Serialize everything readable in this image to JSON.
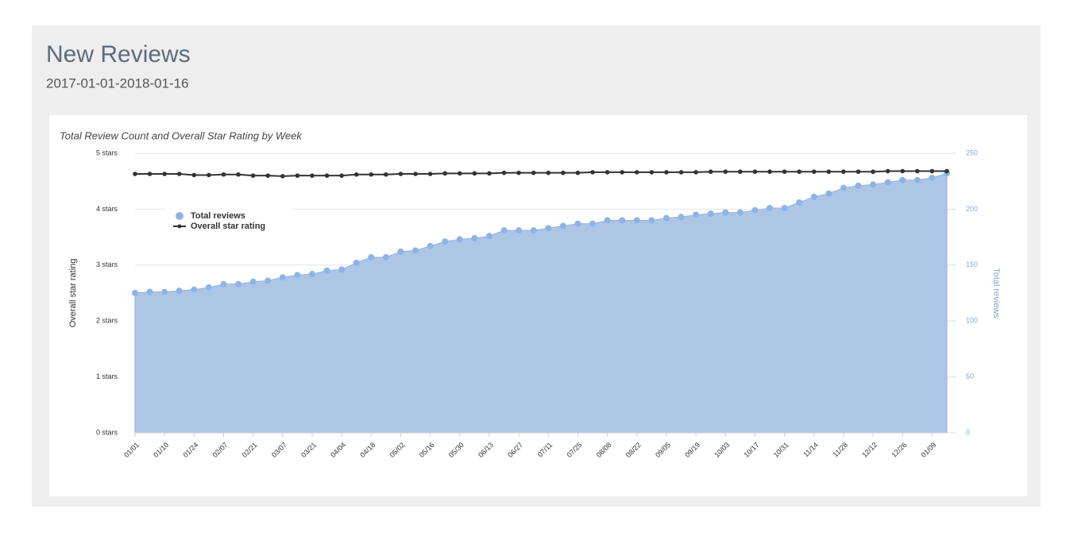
{
  "header": {
    "title": "New Reviews",
    "subtitle": "2017-01-01-2018-01-16"
  },
  "chart_data": {
    "type": "area",
    "title": "Total Review Count and Overall Star Rating by Week",
    "ylabel": "Overall star rating",
    "y2label": "Total reviews",
    "categories": [
      "01/01",
      null,
      "01/10",
      null,
      "01/24",
      null,
      "02/07",
      null,
      "02/21",
      null,
      "03/07",
      null,
      "03/21",
      null,
      "04/04",
      null,
      "04/18",
      null,
      "05/02",
      null,
      "05/16",
      null,
      "05/30",
      null,
      "06/13",
      null,
      "06/27",
      null,
      "07/11",
      null,
      "07/25",
      null,
      "08/08",
      null,
      "08/22",
      null,
      "09/05",
      null,
      "09/19",
      null,
      "10/03",
      null,
      "10/17",
      null,
      "10/31",
      null,
      "11/14",
      null,
      "11/28",
      null,
      "12/12",
      null,
      "12/26",
      null,
      "01/09",
      null
    ],
    "series": [
      {
        "name": "Total reviews",
        "type": "area",
        "axis": "y2",
        "color": "#8fb3e3",
        "values": [
          125,
          126,
          126,
          127,
          128,
          130,
          133,
          133,
          135,
          136,
          139,
          141,
          142,
          145,
          146,
          152,
          157,
          157,
          162,
          163,
          167,
          171,
          173,
          174,
          176,
          181,
          181,
          181,
          183,
          185,
          187,
          187,
          190,
          190,
          190,
          190,
          192,
          193,
          195,
          196,
          197,
          197,
          199,
          201,
          201,
          206,
          211,
          214,
          219,
          221,
          222,
          224,
          226,
          226,
          228,
          232
        ]
      },
      {
        "name": "Overall star rating",
        "type": "line",
        "color": "#333333",
        "values": [
          4.63,
          4.63,
          4.63,
          4.63,
          4.61,
          4.61,
          4.62,
          4.62,
          4.6,
          4.6,
          4.59,
          4.6,
          4.6,
          4.6,
          4.6,
          4.62,
          4.62,
          4.62,
          4.63,
          4.63,
          4.63,
          4.64,
          4.64,
          4.64,
          4.64,
          4.65,
          4.65,
          4.65,
          4.65,
          4.65,
          4.65,
          4.66,
          4.66,
          4.66,
          4.66,
          4.66,
          4.66,
          4.66,
          4.66,
          4.67,
          4.67,
          4.67,
          4.67,
          4.67,
          4.67,
          4.67,
          4.67,
          4.67,
          4.67,
          4.67,
          4.67,
          4.68,
          4.68,
          4.68,
          4.68,
          4.68
        ]
      }
    ],
    "ylim": [
      0,
      5
    ],
    "yticks": [
      {
        "value": 0,
        "label": "0 stars"
      },
      {
        "value": 1,
        "label": "1 stars"
      },
      {
        "value": 2,
        "label": "2 stars"
      },
      {
        "value": 3,
        "label": "3 stars"
      },
      {
        "value": 4,
        "label": "4 stars"
      },
      {
        "value": 5,
        "label": "5 stars"
      }
    ],
    "y2lim": [
      0,
      250
    ],
    "y2ticks": [
      0,
      50,
      100,
      150,
      200,
      250
    ],
    "grid": true,
    "legend": "upper left"
  }
}
